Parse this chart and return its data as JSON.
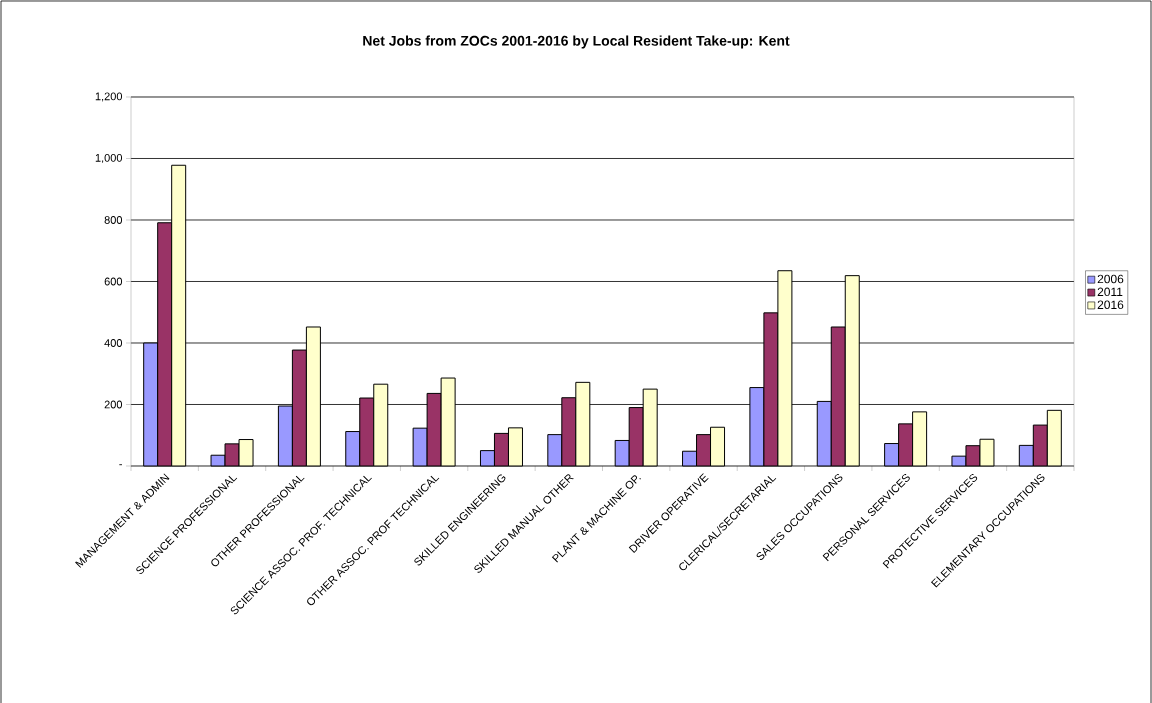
{
  "chart_data": {
    "type": "bar",
    "title": "Net Jobs from ZOCs 2001-2016 by Local Resident Take-up: Kent",
    "categories": [
      "MANAGEMENT & ADMIN",
      "SCIENCE PROFESSIONAL",
      "OTHER PROFESSIONAL",
      "SCIENCE ASSOC. PROF. TECHNICAL",
      "OTHER ASSOC. PROF TECHNICAL",
      "SKILLED ENGINEERING",
      "SKILLED MANUAL OTHER",
      "PLANT & MACHINE OP.",
      "DRIVER OPERATIVE",
      "CLERICAL/SECRETARIAL",
      "SALES OCCUPATIONS",
      "PERSONAL SERVICES",
      "PROTECTIVE SERVICES",
      "ELEMENTARY OCCUPATIONS"
    ],
    "series": [
      {
        "name": "2006",
        "color": "#9999ff",
        "values": [
          400,
          35,
          195,
          112,
          123,
          50,
          102,
          83,
          48,
          255,
          210,
          73,
          32,
          67
        ]
      },
      {
        "name": "2011",
        "color": "#993366",
        "values": [
          791,
          72,
          377,
          221,
          236,
          106,
          222,
          190,
          102,
          498,
          452,
          137,
          66,
          133
        ]
      },
      {
        "name": "2016",
        "color": "#ffffcc",
        "values": [
          978,
          86,
          452,
          266,
          286,
          124,
          272,
          250,
          126,
          635,
          619,
          176,
          87,
          181
        ]
      }
    ],
    "ylim": [
      0,
      1200
    ],
    "yticks": [
      {
        "value": 0,
        "label": "-"
      },
      200,
      400,
      600,
      800,
      {
        "value": 1000,
        "label": "1,000"
      },
      {
        "value": 1200,
        "label": "1,200"
      }
    ],
    "grid": "y",
    "legend": "right"
  }
}
